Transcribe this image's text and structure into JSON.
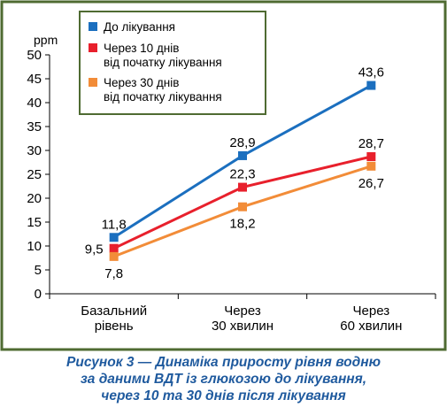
{
  "chart_data": {
    "type": "line",
    "ylabel": "ppm",
    "ylim": [
      0,
      50
    ],
    "yticks": [
      0,
      5,
      10,
      15,
      20,
      25,
      30,
      35,
      40,
      45,
      50
    ],
    "categories": [
      [
        "Базальний",
        "рівень"
      ],
      [
        "Через",
        "30 хвилин"
      ],
      [
        "Через",
        "60 хвилин"
      ]
    ],
    "grid": false,
    "legend_position": "top-left",
    "series": [
      {
        "name_lines": [
          "До лікування"
        ],
        "color": "#1b6fbf",
        "values": [
          11.8,
          28.9,
          43.6
        ],
        "labels": [
          "11,8",
          "28,9",
          "43,6"
        ],
        "label_pos": [
          "above",
          "above",
          "above"
        ]
      },
      {
        "name_lines": [
          "Через 10 днів",
          "від початку лікування"
        ],
        "color": "#e8202c",
        "values": [
          9.5,
          22.3,
          28.7
        ],
        "labels": [
          "9,5",
          "22,3",
          "28,7"
        ],
        "label_pos": [
          "left",
          "above",
          "above"
        ]
      },
      {
        "name_lines": [
          "Через 30 днів",
          "від початку лікування"
        ],
        "color": "#f28c38",
        "values": [
          7.8,
          18.2,
          26.7
        ],
        "labels": [
          "7,8",
          "18,2",
          "26,7"
        ],
        "label_pos": [
          "below",
          "below",
          "below"
        ]
      }
    ]
  },
  "colors": {
    "frame": "#4f6b32",
    "legend_bg": "#ffffff",
    "caption": "#1f5a9e"
  },
  "caption": {
    "line1": "Рисунок 3 — Динаміка приросту рівня водню",
    "line2": "за даними ВДТ із глюкозою до лікування,",
    "line3": "через 10 та 30 днів після лікування"
  }
}
